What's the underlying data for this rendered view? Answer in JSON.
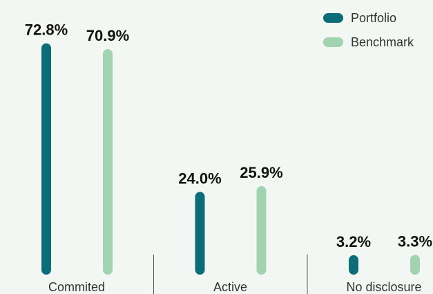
{
  "chart_data": {
    "type": "bar",
    "categories": [
      "Commited",
      "Active",
      "No disclosure"
    ],
    "series": [
      {
        "name": "Portfolio",
        "color": "#0b6d78",
        "values": [
          72.8,
          24.0,
          3.2
        ],
        "value_labels": [
          "72.8%",
          "24.0%",
          "3.2%"
        ]
      },
      {
        "name": "Benchmark",
        "color": "#a2d3b0",
        "values": [
          70.9,
          25.9,
          3.3
        ],
        "value_labels": [
          "70.9%",
          "25.9%",
          "3.3%"
        ]
      }
    ],
    "legend": "top-right"
  }
}
